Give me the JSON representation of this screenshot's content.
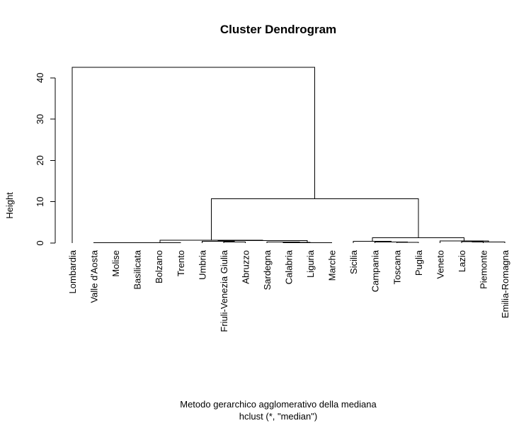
{
  "chart_data": {
    "type": "dendrogram",
    "title": "Cluster Dendrogram",
    "ylabel": "Height",
    "xlabel": "Metodo gerarchico agglomerativo della mediana",
    "sub": "hclust (*, \"median\")",
    "ylim": [
      0,
      45
    ],
    "yticks": [
      0,
      10,
      20,
      30,
      40
    ],
    "labels": [
      "Lombardia",
      "Valle d'Aosta",
      "Molise",
      "Basilicata",
      "Bolzano",
      "Trento",
      "Umbria",
      "Friuli-Venezia Giulia",
      "Abruzzo",
      "Sardegna",
      "Calabria",
      "Liguria",
      "Marche",
      "Sicilia",
      "Campania",
      "Toscana",
      "Puglia",
      "Veneto",
      "Lazio",
      "Piemonte",
      "Emilia-Romagna"
    ],
    "merges": [
      {
        "id": "a1",
        "left": "Valle d'Aosta",
        "right": "Molise",
        "height": 0.05
      },
      {
        "id": "a2",
        "left": "a1",
        "right": "Basilicata",
        "height": 0.08
      },
      {
        "id": "a3",
        "left": "a2",
        "right": "Bolzano",
        "height": 0.1
      },
      {
        "id": "a4",
        "left": "a3",
        "right": "Trento",
        "height": 0.12
      },
      {
        "id": "b1",
        "left": "Friuli-Venezia Giulia",
        "right": "Abruzzo",
        "height": 0.3
      },
      {
        "id": "b2",
        "left": "Umbria",
        "right": "b1",
        "height": 0.45
      },
      {
        "id": "b3",
        "left": "Calabria",
        "right": "Liguria",
        "height": 0.15
      },
      {
        "id": "b4",
        "left": "Sardegna",
        "right": "b3",
        "height": 0.3
      },
      {
        "id": "b5",
        "left": "b4",
        "right": "Marche",
        "height": 0.1
      },
      {
        "id": "b6",
        "left": "b2",
        "right": "b5",
        "height": 0.6
      },
      {
        "id": "c1",
        "left": "a4",
        "right": "b6",
        "height": 0.7
      },
      {
        "id": "d1",
        "left": "Toscana",
        "right": "Puglia",
        "height": 0.2
      },
      {
        "id": "d2",
        "left": "Campania",
        "right": "d1",
        "height": 0.3
      },
      {
        "id": "d3",
        "left": "Sicilia",
        "right": "d2",
        "height": 0.4
      },
      {
        "id": "e1",
        "left": "Lazio",
        "right": "Piemonte",
        "height": 0.35
      },
      {
        "id": "e2",
        "left": "e1",
        "right": "Emilia-Romagna",
        "height": 0.25
      },
      {
        "id": "e3",
        "left": "Veneto",
        "right": "e2",
        "height": 0.5
      },
      {
        "id": "f1",
        "left": "d3",
        "right": "e3",
        "height": 1.3
      },
      {
        "id": "g1",
        "left": "c1",
        "right": "f1",
        "height": 10.7
      },
      {
        "id": "root",
        "left": "Lombardia",
        "right": "g1",
        "height": 42.5
      }
    ]
  }
}
